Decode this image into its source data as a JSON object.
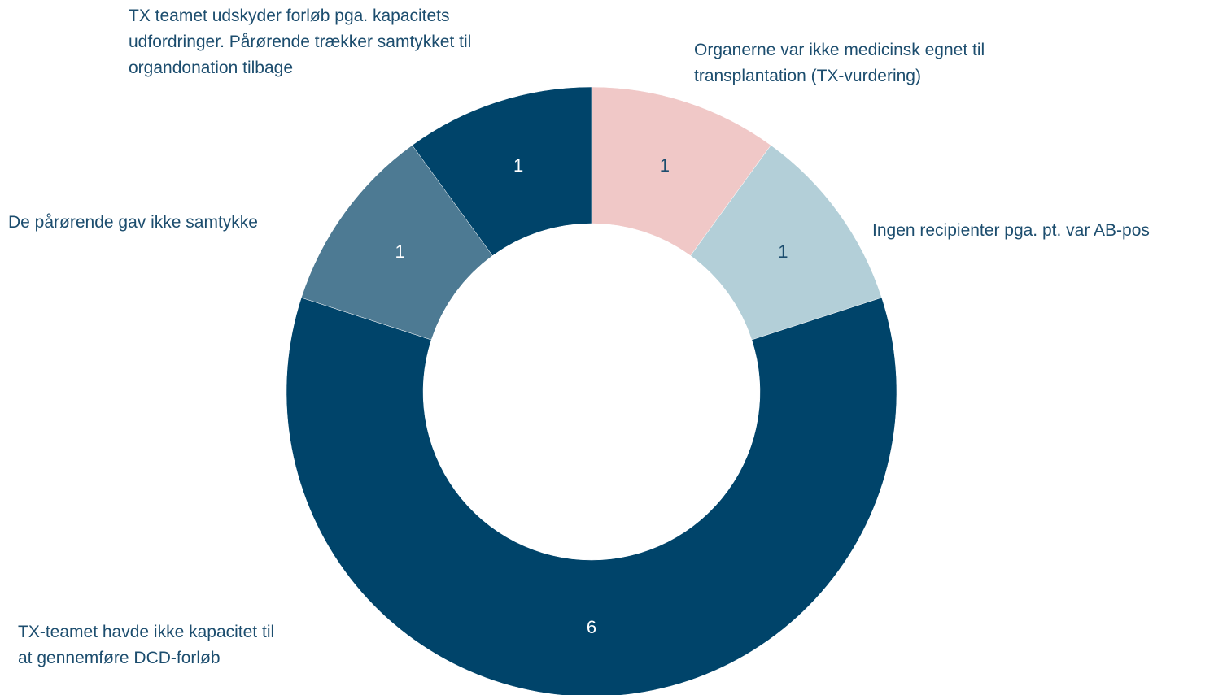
{
  "chart_data": {
    "type": "donut",
    "categories": [
      "Organerne var ikke medicinsk egnet til\ntransplantation (TX-vurdering)",
      "Ingen recipienter pga. pt. var AB-pos",
      "TX-teamet havde ikke kapacitet til\nat gennemføre DCD-forløb",
      "De pårørende gav ikke samtykke",
      "TX teamet udskyder forløb pga. kapacitets\nudfordringer. Pårørende trækker samtykket til\norgandonation tilbage"
    ],
    "values": [
      1,
      1,
      6,
      1,
      1
    ],
    "colors": [
      "#f0c8c7",
      "#b3cfd8",
      "#00446a",
      "#4d7a93",
      "#00446a"
    ]
  }
}
